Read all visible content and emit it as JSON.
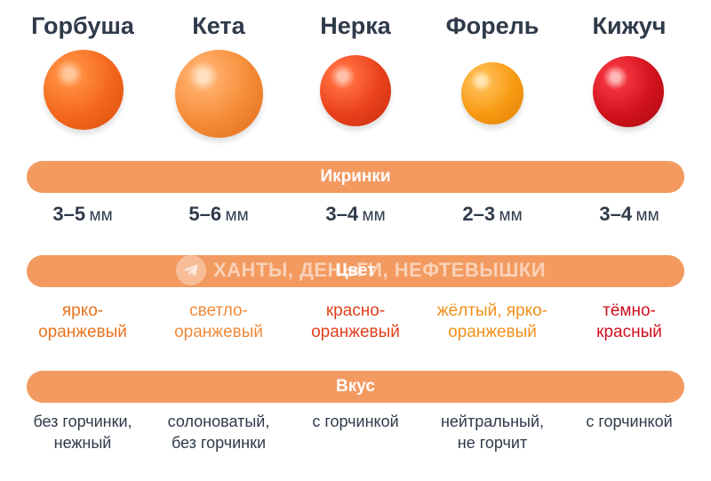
{
  "sections": {
    "size": "Икринки",
    "color": "Цвет",
    "taste": "Вкус"
  },
  "watermark": "ХАНТЫ, ДЕНЬГИ, НЕФТЕВЫШКИ",
  "fish": [
    {
      "name": "Горбуша",
      "size_num": "3–5",
      "size_unit": "мм",
      "color_line1": "ярко-",
      "color_line2": "оранжевый",
      "color_text_hex": "#e8731f",
      "egg_color": "#f2661c",
      "taste_line1": "без горчинки,",
      "taste_line2": "нежный"
    },
    {
      "name": "Кета",
      "size_num": "5–6",
      "size_unit": "мм",
      "color_line1": "светло-",
      "color_line2": "оранжевый",
      "color_text_hex": "#f08a3a",
      "egg_color": "#f58a35",
      "taste_line1": "солоноватый,",
      "taste_line2": "без горчинки"
    },
    {
      "name": "Нерка",
      "size_num": "3–4",
      "size_unit": "мм",
      "color_line1": "красно-",
      "color_line2": "оранжевый",
      "color_text_hex": "#e0401e",
      "egg_color": "#e8401c",
      "taste_line1": "с горчинкой",
      "taste_line2": ""
    },
    {
      "name": "Форель",
      "size_num": "2–3",
      "size_unit": "мм",
      "color_line1": "жёлтый, ярко-",
      "color_line2": "оранжевый",
      "color_text_hex": "#f0901a",
      "egg_color": "#f79a12",
      "taste_line1": "нейтральный,",
      "taste_line2": "не горчит"
    },
    {
      "name": "Кижуч",
      "size_num": "3–4",
      "size_unit": "мм",
      "color_line1": "тёмно-",
      "color_line2": "красный",
      "color_text_hex": "#d01020",
      "egg_color": "#d1121c",
      "taste_line1": "с горчинкой",
      "taste_line2": ""
    }
  ]
}
